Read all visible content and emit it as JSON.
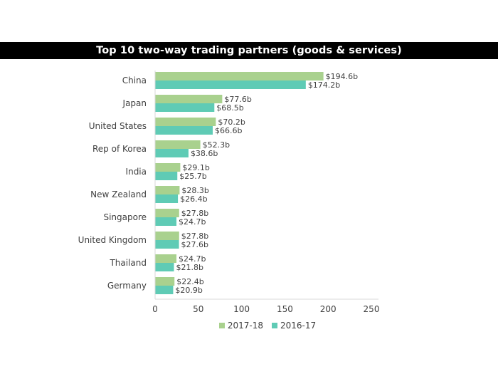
{
  "chart_data": {
    "type": "bar",
    "orientation": "horizontal",
    "title": "Top 10 two-way trading partners (goods & services)",
    "categories": [
      "China",
      "Japan",
      "United States",
      "Rep of Korea",
      "India",
      "New Zealand",
      "Singapore",
      "United Kingdom",
      "Thailand",
      "Germany"
    ],
    "series": [
      {
        "name": "2017-18",
        "color": "#a9d18e",
        "values": [
          194.6,
          77.6,
          70.2,
          52.3,
          29.1,
          28.3,
          27.8,
          27.8,
          24.7,
          22.4
        ],
        "labels": [
          "$194.6b",
          "$77.6b",
          "$70.2b",
          "$52.3b",
          "$29.1b",
          "$28.3b",
          "$27.8b",
          "$27.8b",
          "$24.7b",
          "$22.4b"
        ]
      },
      {
        "name": "2016-17",
        "color": "#5fcbb5",
        "values": [
          174.2,
          68.5,
          66.6,
          38.6,
          25.7,
          26.4,
          24.7,
          27.6,
          21.8,
          20.9
        ],
        "labels": [
          "$174.2b",
          "$68.5b",
          "$66.6b",
          "$38.6b",
          "$25.7b",
          "$26.4b",
          "$24.7b",
          "$27.6b",
          "$21.8b",
          "$20.9b"
        ]
      }
    ],
    "xlim": [
      0,
      250
    ],
    "xticks": [
      "0",
      "50",
      "100",
      "150",
      "200",
      "250"
    ],
    "grid": false,
    "legend_position": "bottom"
  }
}
